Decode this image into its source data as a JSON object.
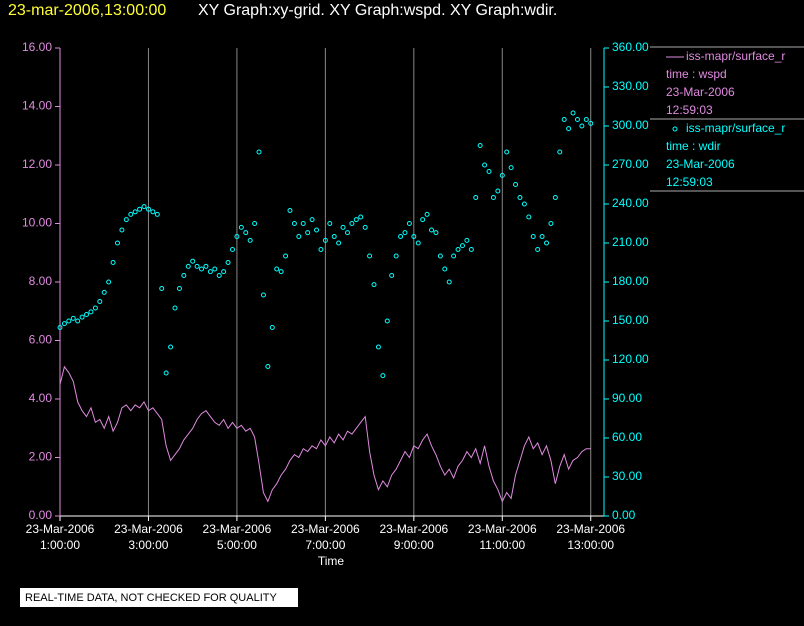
{
  "chart_data": {
    "type": "line_scatter",
    "title_time": "23-mar-2006,13:00:00",
    "title": "XY Graph:xy-grid.  XY Graph:wspd.  XY Graph:wdir.",
    "x_label": "Time",
    "grid": true,
    "x": [
      1.0,
      1.1,
      1.2,
      1.3,
      1.4,
      1.5,
      1.6,
      1.7,
      1.8,
      1.9,
      2.0,
      2.1,
      2.2,
      2.3,
      2.4,
      2.5,
      2.6,
      2.7,
      2.8,
      2.9,
      3.0,
      3.1,
      3.2,
      3.3,
      3.4,
      3.5,
      3.6,
      3.7,
      3.8,
      3.9,
      4.0,
      4.1,
      4.2,
      4.3,
      4.4,
      4.5,
      4.6,
      4.7,
      4.8,
      4.9,
      5.0,
      5.1,
      5.2,
      5.3,
      5.4,
      5.5,
      5.6,
      5.7,
      5.8,
      5.9,
      6.0,
      6.1,
      6.2,
      6.3,
      6.4,
      6.5,
      6.6,
      6.7,
      6.8,
      6.9,
      7.0,
      7.1,
      7.2,
      7.3,
      7.4,
      7.5,
      7.6,
      7.7,
      7.8,
      7.9,
      8.0,
      8.1,
      8.2,
      8.3,
      8.4,
      8.5,
      8.6,
      8.7,
      8.8,
      8.9,
      9.0,
      9.1,
      9.2,
      9.3,
      9.4,
      9.5,
      9.6,
      9.7,
      9.8,
      9.9,
      10.0,
      10.1,
      10.2,
      10.3,
      10.4,
      10.5,
      10.6,
      10.7,
      10.8,
      10.9,
      11.0,
      11.1,
      11.2,
      11.3,
      11.4,
      11.5,
      11.6,
      11.7,
      11.8,
      11.9,
      12.0,
      12.1,
      12.2,
      12.3,
      12.4,
      12.5,
      12.6,
      12.7,
      12.8,
      12.9,
      13.0
    ],
    "xlim": [
      1,
      13.3
    ],
    "xticks": [
      {
        "value": 1,
        "label": [
          "23-Mar-2006",
          "1:00:00"
        ]
      },
      {
        "value": 3,
        "label": [
          "23-Mar-2006",
          "3:00:00"
        ]
      },
      {
        "value": 5,
        "label": [
          "23-Mar-2006",
          "5:00:00"
        ]
      },
      {
        "value": 7,
        "label": [
          "23-Mar-2006",
          "7:00:00"
        ]
      },
      {
        "value": 9,
        "label": [
          "23-Mar-2006",
          "9:00:00"
        ]
      },
      {
        "value": 11,
        "label": [
          "23-Mar-2006",
          "11:00:00"
        ]
      },
      {
        "value": 13,
        "label": [
          "23-Mar-2006",
          "13:00:00"
        ]
      }
    ],
    "ylim": [
      0,
      16
    ],
    "yticks": [
      {
        "value": 0,
        "label": "0.00"
      },
      {
        "value": 2,
        "label": "2.00"
      },
      {
        "value": 4,
        "label": "4.00"
      },
      {
        "value": 6,
        "label": "6.00"
      },
      {
        "value": 8,
        "label": "8.00"
      },
      {
        "value": 10,
        "label": "10.00"
      },
      {
        "value": 12,
        "label": "12.00"
      },
      {
        "value": 14,
        "label": "14.00"
      },
      {
        "value": 16,
        "label": "16.00"
      }
    ],
    "y_color": "#e08ae0",
    "y2lim": [
      0,
      360
    ],
    "y2ticks": [
      {
        "value": 0,
        "label": "0.00"
      },
      {
        "value": 30,
        "label": "30.00"
      },
      {
        "value": 60,
        "label": "60.00"
      },
      {
        "value": 90,
        "label": "90.00"
      },
      {
        "value": 120,
        "label": "120.00"
      },
      {
        "value": 150,
        "label": "150.00"
      },
      {
        "value": 180,
        "label": "180.00"
      },
      {
        "value": 210,
        "label": "210.00"
      },
      {
        "value": 240,
        "label": "240.00"
      },
      {
        "value": 270,
        "label": "270.00"
      },
      {
        "value": 300,
        "label": "300.00"
      },
      {
        "value": 330,
        "label": "330.00"
      },
      {
        "value": 360,
        "label": "360.00"
      }
    ],
    "y2_color": "#00ffff",
    "series": [
      {
        "name": "iss-mapr/surface_r",
        "legend_lines": [
          "time : wspd",
          "23-Mar-2006",
          "12:59:03"
        ],
        "type": "line",
        "axis": "y",
        "color": "#e08ae0",
        "values": [
          4.5,
          5.1,
          4.9,
          4.6,
          3.9,
          3.6,
          3.4,
          3.7,
          3.2,
          3.3,
          3.0,
          3.4,
          2.9,
          3.2,
          3.7,
          3.8,
          3.6,
          3.8,
          3.7,
          3.9,
          3.6,
          3.7,
          3.5,
          3.3,
          2.4,
          1.9,
          2.1,
          2.3,
          2.6,
          2.8,
          3.0,
          3.3,
          3.5,
          3.6,
          3.4,
          3.2,
          3.1,
          3.3,
          3.0,
          3.2,
          3.0,
          3.1,
          2.9,
          3.0,
          2.7,
          1.8,
          0.8,
          0.5,
          0.9,
          1.1,
          1.4,
          1.6,
          1.9,
          2.1,
          2.0,
          2.3,
          2.2,
          2.4,
          2.3,
          2.6,
          2.4,
          2.7,
          2.5,
          2.8,
          2.6,
          2.9,
          2.8,
          3.0,
          3.2,
          3.4,
          2.2,
          1.4,
          0.9,
          1.2,
          1.0,
          1.4,
          1.6,
          1.9,
          2.2,
          2.0,
          2.4,
          2.3,
          2.6,
          2.8,
          2.4,
          2.1,
          1.7,
          1.4,
          1.6,
          1.3,
          1.7,
          1.9,
          2.2,
          2.0,
          2.3,
          1.8,
          2.4,
          1.7,
          1.2,
          0.9,
          0.5,
          0.8,
          0.6,
          1.4,
          1.9,
          2.4,
          2.7,
          2.3,
          2.5,
          2.1,
          2.4,
          1.9,
          1.1,
          1.7,
          2.1,
          1.6,
          1.9,
          2.0,
          2.2,
          2.3,
          2.3
        ]
      },
      {
        "name": "iss-mapr/surface_r",
        "legend_lines": [
          "time : wdir",
          "23-Mar-2006",
          "12:59:03"
        ],
        "type": "scatter",
        "axis": "y2",
        "color": "#00ffff",
        "values": [
          145,
          148,
          150,
          152,
          150,
          153,
          155,
          157,
          160,
          165,
          172,
          180,
          195,
          210,
          220,
          228,
          232,
          234,
          236,
          238,
          236,
          234,
          232,
          175,
          110,
          130,
          160,
          175,
          185,
          192,
          196,
          192,
          190,
          192,
          188,
          190,
          185,
          188,
          195,
          205,
          215,
          222,
          218,
          212,
          225,
          280,
          170,
          115,
          145,
          190,
          188,
          200,
          235,
          225,
          215,
          225,
          218,
          228,
          220,
          205,
          212,
          225,
          215,
          210,
          222,
          218,
          225,
          228,
          230,
          222,
          200,
          178,
          130,
          108,
          150,
          185,
          200,
          215,
          218,
          225,
          215,
          210,
          228,
          232,
          220,
          218,
          200,
          190,
          180,
          200,
          205,
          208,
          212,
          205,
          245,
          285,
          270,
          265,
          245,
          250,
          262,
          280,
          268,
          255,
          245,
          240,
          230,
          215,
          205,
          215,
          210,
          225,
          245,
          280,
          305,
          298,
          310,
          305,
          300,
          305,
          302
        ]
      }
    ]
  },
  "footer": "REAL-TIME DATA, NOT CHECKED FOR QUALITY"
}
